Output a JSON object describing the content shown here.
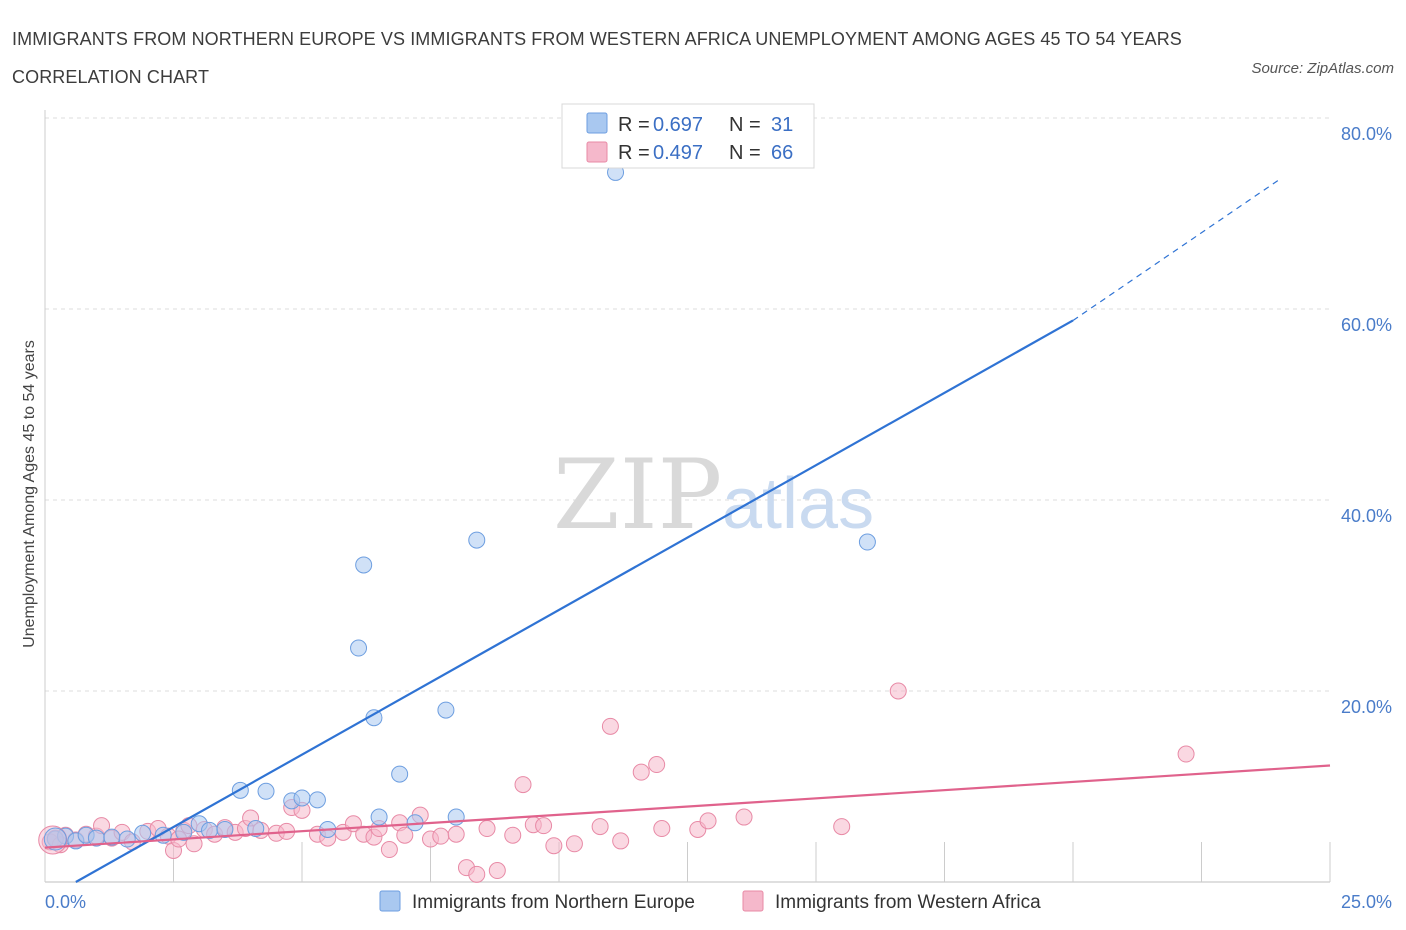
{
  "header": {
    "title": "IMMIGRANTS FROM NORTHERN EUROPE VS IMMIGRANTS FROM WESTERN AFRICA UNEMPLOYMENT AMONG AGES 45 TO 54 YEARS CORRELATION CHART",
    "source": "Source: ZipAtlas.com"
  },
  "watermark": {
    "zip": "ZIP",
    "atlas": "atlas"
  },
  "legend": {
    "rows": [
      {
        "r_label": "R = ",
        "r_value": "0.697",
        "n_label": "N = ",
        "n_value": "31",
        "color": "#a9c8f0"
      },
      {
        "r_label": "R = ",
        "r_value": "0.497",
        "n_label": "N = ",
        "n_value": "66",
        "color": "#f5b8cb"
      }
    ]
  },
  "chart_data": {
    "type": "scatter",
    "title": "IMMIGRANTS FROM NORTHERN EUROPE VS IMMIGRANTS FROM WESTERN AFRICA UNEMPLOYMENT AMONG AGES 45 TO 54 YEARS CORRELATION CHART",
    "xlabel": "",
    "ylabel": "Unemployment Among Ages 45 to 54 years",
    "xlim": [
      0,
      25
    ],
    "ylim": [
      0,
      80
    ],
    "x_tick_labels": [
      "0.0%",
      "25.0%"
    ],
    "y_ticks": [
      20,
      40,
      60,
      80
    ],
    "y_tick_labels": [
      "20.0%",
      "40.0%",
      "60.0%",
      "80.0%"
    ],
    "grid": true,
    "legend_position": "top-center",
    "series": [
      {
        "name": "Immigrants from Northern Europe",
        "color": "#a9c8f0",
        "edge": "#6d9ee0",
        "trend_color": "#2f73d4",
        "trend": {
          "x0": 0.6,
          "y0": 0.0,
          "x1": 20.0,
          "y1": 58.8,
          "dash_x1": 24.0,
          "dash_y1": 73.5
        },
        "points": [
          [
            0.2,
            4.5
          ],
          [
            0.4,
            4.8
          ],
          [
            0.6,
            4.3
          ],
          [
            0.8,
            4.9
          ],
          [
            1.0,
            4.6
          ],
          [
            1.3,
            4.7
          ],
          [
            1.6,
            4.5
          ],
          [
            1.9,
            5.1
          ],
          [
            2.3,
            4.9
          ],
          [
            2.7,
            5.2
          ],
          [
            3.0,
            6.1
          ],
          [
            3.2,
            5.4
          ],
          [
            3.5,
            5.5
          ],
          [
            3.8,
            9.6
          ],
          [
            4.1,
            5.6
          ],
          [
            4.3,
            9.5
          ],
          [
            4.8,
            8.5
          ],
          [
            5.0,
            8.8
          ],
          [
            5.3,
            8.6
          ],
          [
            5.5,
            5.5
          ],
          [
            6.1,
            24.5
          ],
          [
            6.2,
            33.2
          ],
          [
            6.4,
            17.2
          ],
          [
            6.5,
            6.8
          ],
          [
            6.9,
            11.3
          ],
          [
            7.2,
            6.2
          ],
          [
            7.8,
            18.0
          ],
          [
            8.0,
            6.8
          ],
          [
            8.4,
            35.8
          ],
          [
            11.1,
            74.3
          ],
          [
            16.0,
            35.6
          ]
        ]
      },
      {
        "name": "Immigrants from Western Africa",
        "color": "#f5b8cb",
        "edge": "#e88aa6",
        "trend_color": "#e0628c",
        "trend": {
          "x0": 0.0,
          "y0": 3.6,
          "x1": 25.0,
          "y1": 12.2
        },
        "points": [
          [
            0.2,
            4.6
          ],
          [
            0.4,
            4.9
          ],
          [
            0.6,
            4.4
          ],
          [
            0.8,
            5.0
          ],
          [
            1.0,
            4.8
          ],
          [
            1.1,
            5.9
          ],
          [
            1.3,
            4.6
          ],
          [
            1.5,
            5.2
          ],
          [
            1.7,
            4.2
          ],
          [
            2.0,
            5.3
          ],
          [
            2.2,
            5.6
          ],
          [
            2.4,
            4.8
          ],
          [
            2.5,
            3.3
          ],
          [
            2.7,
            5.4
          ],
          [
            2.8,
            5.9
          ],
          [
            2.9,
            4.0
          ],
          [
            3.1,
            5.5
          ],
          [
            3.3,
            5.0
          ],
          [
            3.5,
            5.7
          ],
          [
            3.7,
            5.2
          ],
          [
            3.9,
            5.6
          ],
          [
            4.0,
            6.7
          ],
          [
            4.2,
            5.4
          ],
          [
            4.5,
            5.1
          ],
          [
            4.7,
            5.3
          ],
          [
            4.8,
            7.8
          ],
          [
            5.0,
            7.5
          ],
          [
            5.3,
            5.0
          ],
          [
            5.5,
            4.6
          ],
          [
            5.8,
            5.2
          ],
          [
            6.0,
            6.1
          ],
          [
            6.2,
            5.0
          ],
          [
            6.4,
            4.7
          ],
          [
            6.5,
            5.6
          ],
          [
            6.7,
            3.4
          ],
          [
            6.9,
            6.2
          ],
          [
            7.0,
            4.9
          ],
          [
            7.3,
            7.0
          ],
          [
            7.5,
            4.5
          ],
          [
            7.7,
            4.8
          ],
          [
            8.0,
            5.0
          ],
          [
            8.2,
            1.5
          ],
          [
            8.4,
            0.8
          ],
          [
            8.6,
            5.6
          ],
          [
            8.8,
            1.2
          ],
          [
            9.1,
            4.9
          ],
          [
            9.3,
            10.2
          ],
          [
            9.5,
            6.0
          ],
          [
            9.7,
            5.9
          ],
          [
            9.9,
            3.8
          ],
          [
            10.3,
            4.0
          ],
          [
            10.8,
            5.8
          ],
          [
            11.0,
            16.3
          ],
          [
            11.2,
            4.3
          ],
          [
            11.6,
            11.5
          ],
          [
            11.9,
            12.3
          ],
          [
            12.0,
            5.6
          ],
          [
            12.7,
            5.5
          ],
          [
            12.9,
            6.4
          ],
          [
            13.6,
            6.8
          ],
          [
            15.5,
            5.8
          ],
          [
            16.6,
            20.0
          ],
          [
            22.2,
            13.4
          ],
          [
            0.1,
            4.2
          ],
          [
            0.3,
            3.9
          ],
          [
            2.6,
            4.5
          ]
        ]
      }
    ]
  },
  "bottom_legend": [
    {
      "label": "Immigrants from Northern Europe",
      "color": "#a9c8f0",
      "edge": "#6d9ee0"
    },
    {
      "label": "Immigrants from Western Africa",
      "color": "#f5b8cb",
      "edge": "#e88aa6"
    }
  ]
}
